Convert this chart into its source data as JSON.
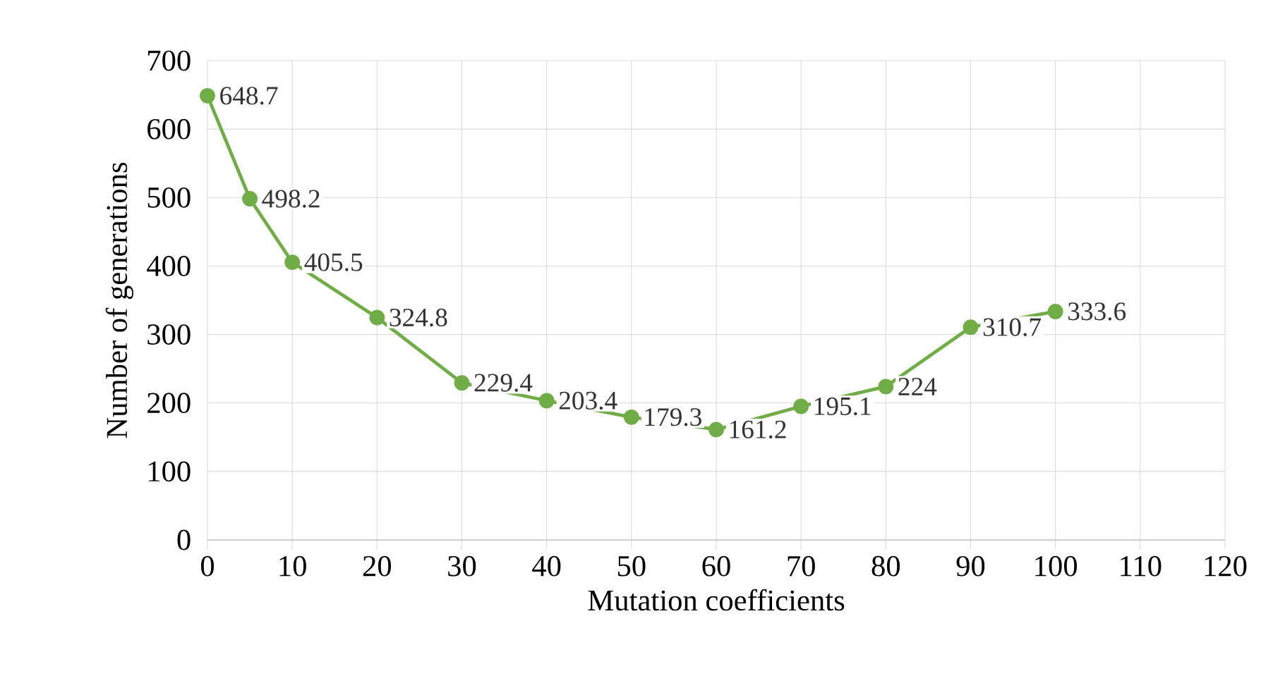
{
  "chart_data": {
    "type": "line",
    "xlabel": "Mutation coefficients",
    "ylabel": "Number of generations",
    "x": [
      0,
      5,
      10,
      20,
      30,
      40,
      50,
      60,
      70,
      80,
      90,
      100
    ],
    "values": [
      648.7,
      498.2,
      405.5,
      324.8,
      229.4,
      203.4,
      179.3,
      161.2,
      195.1,
      224,
      310.7,
      333.6
    ],
    "color": "#70ad47",
    "marker": "circle",
    "line_style": "solid",
    "data_labels": true,
    "grid": true,
    "xlim": [
      0,
      120
    ],
    "xticks": [
      0,
      10,
      20,
      30,
      40,
      50,
      60,
      70,
      80,
      90,
      100,
      110,
      120
    ],
    "ylim": [
      0,
      700
    ],
    "yticks": [
      0,
      100,
      200,
      300,
      400,
      500,
      600,
      700
    ]
  }
}
